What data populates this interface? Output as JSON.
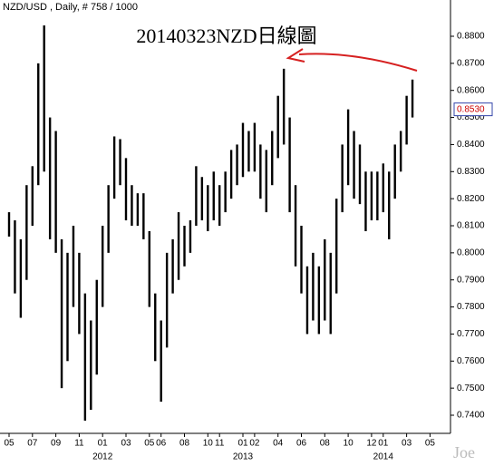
{
  "chart_data": {
    "type": "hilo",
    "header": "NZD/USD , Daily, # 758 / 1000",
    "title": "20140323NZD日線圖",
    "watermark": "Joe",
    "color": "#000000",
    "categories": [
      "05",
      null,
      null,
      null,
      "07",
      null,
      null,
      null,
      "09",
      null,
      null,
      null,
      "11",
      null,
      null,
      null,
      "01",
      null,
      null,
      null,
      "03",
      null,
      null,
      null,
      "05",
      null,
      "06",
      null,
      null,
      null,
      "08",
      null,
      null,
      null,
      "10",
      null,
      "11",
      null,
      null,
      null,
      "01",
      null,
      "02",
      null,
      null,
      null,
      "04",
      null,
      null,
      null,
      "06",
      null,
      null,
      null,
      "08",
      null,
      null,
      null,
      "10",
      null,
      null,
      null,
      "12",
      null,
      "01",
      null,
      null,
      null,
      "03",
      null,
      null,
      null,
      "05",
      null
    ],
    "years": [
      null,
      null,
      null,
      null,
      null,
      null,
      null,
      null,
      null,
      null,
      null,
      null,
      null,
      null,
      null,
      null,
      "2012",
      null,
      null,
      null,
      null,
      null,
      null,
      null,
      null,
      null,
      null,
      null,
      null,
      null,
      null,
      null,
      null,
      null,
      null,
      null,
      null,
      null,
      null,
      null,
      "2013",
      null,
      null,
      null,
      null,
      null,
      null,
      null,
      null,
      null,
      null,
      null,
      null,
      null,
      null,
      null,
      null,
      null,
      null,
      null,
      null,
      null,
      null,
      null,
      "2014",
      null,
      null,
      null,
      null,
      null,
      null,
      null,
      null,
      null
    ],
    "high": [
      0.815,
      0.812,
      0.805,
      0.825,
      0.832,
      0.87,
      0.884,
      0.85,
      0.845,
      0.805,
      0.8,
      0.81,
      0.8,
      0.785,
      0.775,
      0.79,
      0.81,
      0.825,
      0.843,
      0.842,
      0.835,
      0.825,
      0.822,
      0.822,
      0.808,
      0.785,
      0.775,
      0.8,
      0.805,
      0.815,
      0.81,
      0.812,
      0.832,
      0.828,
      0.825,
      0.83,
      0.825,
      0.83,
      0.838,
      0.84,
      0.848,
      0.845,
      0.848,
      0.84,
      0.838,
      0.845,
      0.858,
      0.868,
      0.85,
      0.825,
      0.81,
      0.795,
      0.8,
      0.795,
      0.805,
      0.8,
      0.82,
      0.84,
      0.853,
      0.845,
      0.84,
      0.83,
      0.83,
      0.83,
      0.833,
      0.83,
      0.84,
      0.845,
      0.858,
      0.864,
      null,
      null,
      null,
      null
    ],
    "low": [
      0.806,
      0.785,
      0.776,
      0.79,
      0.81,
      0.825,
      0.83,
      0.805,
      0.8,
      0.75,
      0.76,
      0.78,
      0.77,
      0.738,
      0.742,
      0.755,
      0.78,
      0.8,
      0.82,
      0.825,
      0.812,
      0.81,
      0.81,
      0.805,
      0.78,
      0.76,
      0.745,
      0.765,
      0.785,
      0.79,
      0.795,
      0.8,
      0.81,
      0.812,
      0.808,
      0.812,
      0.81,
      0.815,
      0.82,
      0.825,
      0.828,
      0.83,
      0.83,
      0.82,
      0.815,
      0.825,
      0.835,
      0.84,
      0.815,
      0.795,
      0.785,
      0.77,
      0.775,
      0.77,
      0.775,
      0.77,
      0.785,
      0.815,
      0.825,
      0.82,
      0.818,
      0.808,
      0.812,
      0.812,
      0.815,
      0.805,
      0.82,
      0.83,
      0.84,
      0.85,
      null,
      null,
      null,
      null
    ],
    "last": {
      "value": 0.853,
      "label": "0.8530"
    },
    "last_color": "#cc0000",
    "ylim": [
      0.7333,
      0.8934
    ],
    "yticks": [
      {
        "value": 0.74,
        "label": "0.7400"
      },
      {
        "value": 0.75,
        "label": "0.7500"
      },
      {
        "value": 0.76,
        "label": "0.7600"
      },
      {
        "value": 0.77,
        "label": "0.7700"
      },
      {
        "value": 0.78,
        "label": "0.7800"
      },
      {
        "value": 0.79,
        "label": "0.7900"
      },
      {
        "value": 0.8,
        "label": "0.8000"
      },
      {
        "value": 0.81,
        "label": "0.8100"
      },
      {
        "value": 0.82,
        "label": "0.8200"
      },
      {
        "value": 0.83,
        "label": "0.8300"
      },
      {
        "value": 0.84,
        "label": "0.8400"
      },
      {
        "value": 0.85,
        "label": "0.8500"
      },
      {
        "value": 0.86,
        "label": "0.8600"
      },
      {
        "value": 0.87,
        "label": "0.8700"
      },
      {
        "value": 0.88,
        "label": "0.8800"
      }
    ]
  }
}
